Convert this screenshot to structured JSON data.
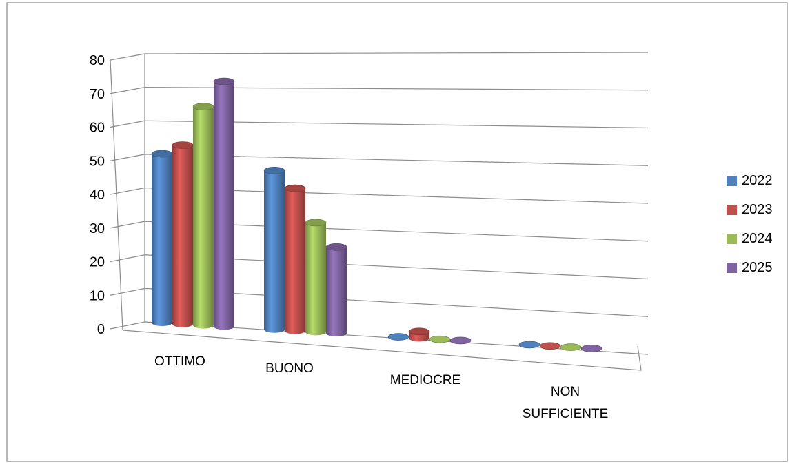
{
  "chart_data": {
    "type": "bar",
    "style": "3d-cylinder",
    "categories": [
      "OTTIMO",
      "BUONO",
      "MEDIOCRE",
      "NON SUFFICIENTE"
    ],
    "category_lines": [
      [
        "OTTIMO"
      ],
      [
        "BUONO"
      ],
      [
        "MEDIOCRE"
      ],
      [
        "NON",
        "SUFFICIENTE"
      ]
    ],
    "series": [
      {
        "name": "2022",
        "color": "#4f81bd",
        "values": [
          51,
          48,
          0,
          0
        ]
      },
      {
        "name": "2023",
        "color": "#c0504d",
        "values": [
          54,
          43,
          2,
          0
        ]
      },
      {
        "name": "2024",
        "color": "#9bbb59",
        "values": [
          66,
          33,
          0,
          0
        ]
      },
      {
        "name": "2025",
        "color": "#8064a2",
        "values": [
          74,
          26,
          0,
          0
        ]
      }
    ],
    "ylim": [
      0,
      80
    ],
    "yticks": [
      "0",
      "10",
      "20",
      "30",
      "40",
      "50",
      "60",
      "70",
      "80"
    ],
    "grid": true,
    "legend_position": "right"
  }
}
